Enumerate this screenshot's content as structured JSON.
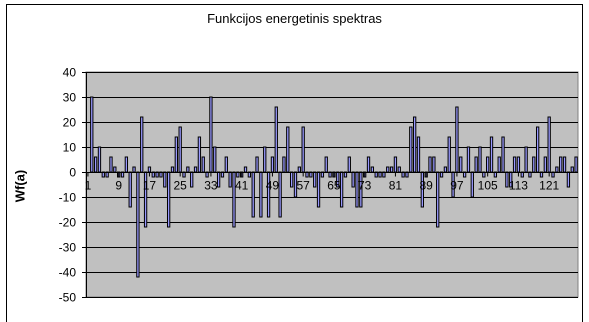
{
  "chart_data": {
    "type": "bar",
    "title": "Funkcijos energetinis spektras",
    "ylabel": "Wf(a)",
    "xlabel": "",
    "ylim": [
      -50,
      40
    ],
    "y_ticks": [
      40,
      30,
      20,
      10,
      0,
      -10,
      -20,
      -30,
      -40,
      -50
    ],
    "x_tick_labels": [
      "1",
      "9",
      "17",
      "25",
      "33",
      "41",
      "49",
      "57",
      "65",
      "73",
      "81",
      "89",
      "97",
      "105",
      "113",
      "121"
    ],
    "grid": true,
    "legend": "none",
    "colors": {
      "plot_bg": "#c0c0c0",
      "bar_fill": "#9999ff",
      "bar_edge": "#000000",
      "frame": "#000000"
    },
    "categories": [
      1,
      2,
      3,
      4,
      5,
      6,
      7,
      8,
      9,
      10,
      11,
      12,
      13,
      14,
      15,
      16,
      17,
      18,
      19,
      20,
      21,
      22,
      23,
      24,
      25,
      26,
      27,
      28,
      29,
      30,
      31,
      32,
      33,
      34,
      35,
      36,
      37,
      38,
      39,
      40,
      41,
      42,
      43,
      44,
      45,
      46,
      47,
      48,
      49,
      50,
      51,
      52,
      53,
      54,
      55,
      56,
      57,
      58,
      59,
      60,
      61,
      62,
      63,
      64,
      65,
      66,
      67,
      68,
      69,
      70,
      71,
      72,
      73,
      74,
      75,
      76,
      77,
      78,
      79,
      80,
      81,
      82,
      83,
      84,
      85,
      86,
      87,
      88,
      89,
      90,
      91,
      92,
      93,
      94,
      95,
      96,
      97,
      98,
      99,
      100,
      101,
      102,
      103,
      104,
      105,
      106,
      107,
      108,
      109,
      110,
      111,
      112,
      113,
      114,
      115,
      116,
      117,
      118,
      119,
      120,
      121,
      122,
      123,
      124,
      125,
      126,
      127,
      128
    ],
    "values": [
      0,
      30,
      6,
      10,
      -2,
      -2,
      6,
      2,
      -2,
      -2,
      6,
      -14,
      2,
      -42,
      22,
      -22,
      2,
      -2,
      -2,
      -2,
      -6,
      -22,
      2,
      14,
      18,
      -2,
      2,
      -6,
      2,
      14,
      6,
      -2,
      30,
      10,
      -6,
      -2,
      6,
      -6,
      -22,
      -2,
      -2,
      2,
      -2,
      -18,
      6,
      -18,
      10,
      -18,
      6,
      26,
      -18,
      6,
      18,
      -6,
      -10,
      2,
      18,
      -2,
      -2,
      -6,
      -14,
      -2,
      6,
      -2,
      -2,
      -6,
      -14,
      -2,
      6,
      -6,
      -14,
      -14,
      -2,
      6,
      2,
      -2,
      -2,
      -2,
      2,
      2,
      6,
      2,
      -2,
      -2,
      18,
      22,
      14,
      -14,
      -2,
      6,
      6,
      -22,
      -2,
      2,
      14,
      -10,
      26,
      6,
      -2,
      10,
      -10,
      6,
      10,
      -2,
      6,
      14,
      -2,
      6,
      14,
      -6,
      -6,
      6,
      6,
      -2,
      10,
      -2,
      6,
      18,
      -2,
      6,
      22,
      -2,
      2,
      6,
      6,
      -6,
      2,
      6
    ]
  }
}
